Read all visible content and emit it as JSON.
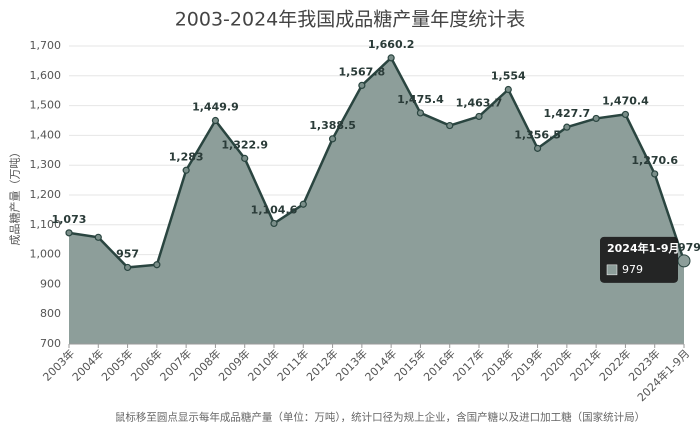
{
  "chart_data": {
    "type": "area",
    "title": "2003-2024年我国成品糖产量年度统计表",
    "y_label": "成品糖产量（万吨）",
    "footnote": "鼠标移至圆点显示每年成品糖产量（单位：万吨），统计口径为规上企业，含国产糖以及进口加工糖（国家统计局）",
    "categories": [
      "2003年",
      "2004年",
      "2005年",
      "2006年",
      "2007年",
      "2008年",
      "2009年",
      "2010年",
      "2011年",
      "2012年",
      "2013年",
      "2014年",
      "2015年",
      "2016年",
      "2017年",
      "2018年",
      "2019年",
      "2020年",
      "2021年",
      "2022年",
      "2023年",
      "2024年1-9月"
    ],
    "values": [
      1073,
      1058,
      957,
      966,
      1283,
      1449.9,
      1322.9,
      1104.6,
      1169,
      1388.5,
      1567.8,
      1660.2,
      1475.4,
      1433,
      1463.7,
      1554,
      1356.5,
      1427.7,
      1457,
      1470.4,
      1270.6,
      979
    ],
    "value_labels": [
      "1,073",
      null,
      "957",
      null,
      "1,283",
      "1,449.9",
      "1,322.9",
      "1,104.6",
      null,
      "1,388.5",
      "1,567.8",
      "1,660.2",
      "1,475.4",
      null,
      "1,463.7",
      "1,554",
      "1,356.5",
      "1,427.7",
      null,
      "1,470.4",
      "1,270.6",
      "979"
    ],
    "color": "#8d9e9a",
    "line_color": "#2a4540",
    "ylim": [
      700,
      1700
    ],
    "yticks": [
      700,
      800,
      900,
      {
        "value": 1000,
        "label": "1,000"
      },
      {
        "value": 1100,
        "label": "1,100"
      },
      {
        "value": 1200,
        "label": "1,200"
      },
      {
        "value": 1300,
        "label": "1,300"
      },
      {
        "value": 1400,
        "label": "1,400"
      },
      {
        "value": 1500,
        "label": "1,500"
      },
      {
        "value": 1600,
        "label": "1,600"
      },
      {
        "value": 1700,
        "label": "1,700"
      }
    ],
    "grid": true,
    "highlight": 21
  }
}
